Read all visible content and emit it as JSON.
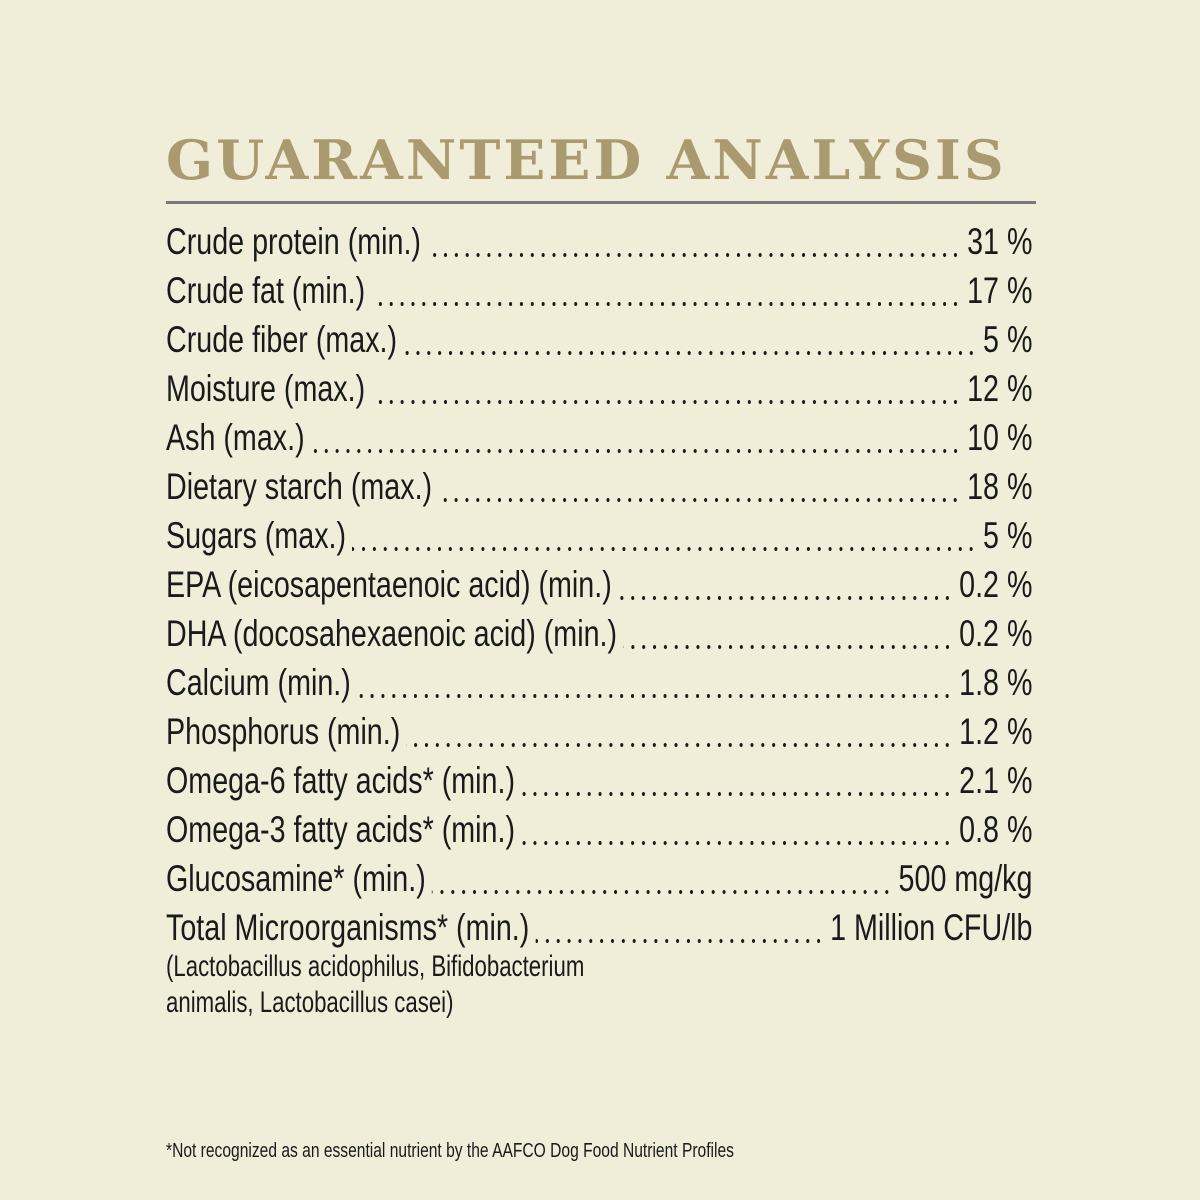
{
  "title": "GUARANTEED ANALYSIS",
  "colors": {
    "background": "#f0edd9",
    "title": "#a99a70",
    "rule": "#7a7a78",
    "text": "#1a1a1a"
  },
  "rows": [
    {
      "label": "Crude protein (min.)",
      "value": "31 %"
    },
    {
      "label": "Crude fat (min.)",
      "value": "17 %"
    },
    {
      "label": "Crude fiber (max.)",
      "value": "5 %"
    },
    {
      "label": "Moisture (max.)",
      "value": "12 %"
    },
    {
      "label": "Ash (max.)",
      "value": "10 %"
    },
    {
      "label": "Dietary starch (max.)",
      "value": "18 %"
    },
    {
      "label": "Sugars (max.)",
      "value": "5 %"
    },
    {
      "label": "EPA (eicosapentaenoic acid) (min.)",
      "value": "0.2 %"
    },
    {
      "label": "DHA (docosahexaenoic acid) (min.)",
      "value": "0.2 %"
    },
    {
      "label": "Calcium (min.)",
      "value": "1.8 %"
    },
    {
      "label": "Phosphorus (min.)",
      "value": "1.2 %"
    },
    {
      "label": "Omega-6 fatty acids* (min.)",
      "value": "2.1 %"
    },
    {
      "label": "Omega-3 fatty acids* (min.)",
      "value": "0.8 %"
    },
    {
      "label": "Glucosamine* (min.)",
      "value": "500 mg/kg"
    },
    {
      "label": "Total Microorganisms* (min.)",
      "value": "1 Million CFU/lb"
    }
  ],
  "microorganism_note": [
    "(Lactobacillus acidophilus, Bifidobacterium",
    "animalis, Lactobacillus casei)"
  ],
  "footnote": "*Not recognized as an essential nutrient by the AAFCO Dog Food Nutrient Profiles"
}
